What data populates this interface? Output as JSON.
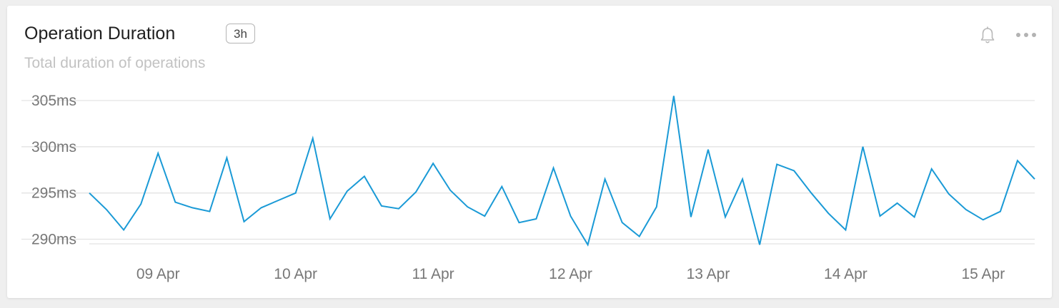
{
  "card": {
    "title": "Operation Duration",
    "range_badge": "3h",
    "subtitle": "Total duration of operations"
  },
  "icons": {
    "bell": "bell-icon",
    "more": "more-horizontal-icon"
  },
  "chart_data": {
    "type": "line",
    "y_unit": "ms",
    "ylim": [
      289.5,
      306
    ],
    "y_ticks": [
      290,
      295,
      300,
      305
    ],
    "y_tick_labels": [
      "290ms",
      "295ms",
      "300ms",
      "305ms"
    ],
    "x_ticks": [
      1,
      2,
      3,
      4,
      5,
      6,
      7
    ],
    "x_tick_labels": [
      "09 Apr",
      "10 Apr",
      "11 Apr",
      "12 Apr",
      "13 Apr",
      "14 Apr",
      "15 Apr"
    ],
    "xlim": [
      0.5,
      7.375
    ],
    "grid": true,
    "color": "#1a9ad6",
    "series": [
      {
        "x": [
          0.5,
          0.625,
          0.75,
          0.875,
          1.0,
          1.125,
          1.25,
          1.375,
          1.5,
          1.625,
          1.75,
          1.875,
          2.0,
          2.125,
          2.25,
          2.375,
          2.5,
          2.625,
          2.75,
          2.875,
          3.0,
          3.125,
          3.25,
          3.375,
          3.5,
          3.625,
          3.75,
          3.875,
          4.0,
          4.125,
          4.25,
          4.375,
          4.5,
          4.625,
          4.75,
          4.875,
          5.0,
          5.125,
          5.25,
          5.375,
          5.5,
          5.625,
          5.75,
          5.875,
          6.0,
          6.125,
          6.25,
          6.375,
          6.5,
          6.625,
          6.75,
          6.875,
          7.0,
          7.125,
          7.25,
          7.375
        ],
        "values": [
          295.0,
          293.2,
          291.0,
          293.8,
          299.3,
          294.0,
          293.4,
          293.0,
          298.8,
          291.9,
          293.4,
          294.2,
          295.0,
          300.9,
          292.2,
          295.2,
          296.8,
          293.6,
          293.3,
          295.1,
          298.2,
          295.3,
          293.5,
          292.5,
          295.7,
          291.8,
          292.2,
          297.7,
          292.5,
          289.4,
          296.5,
          291.8,
          290.3,
          293.5,
          305.5,
          292.4,
          299.7,
          292.4,
          296.5,
          289.4,
          298.1,
          297.4,
          295.0,
          292.8,
          291.0,
          300.0,
          292.5,
          293.9,
          292.4,
          297.6,
          294.9,
          293.2,
          292.1,
          293.0,
          298.5,
          296.5
        ]
      }
    ]
  }
}
